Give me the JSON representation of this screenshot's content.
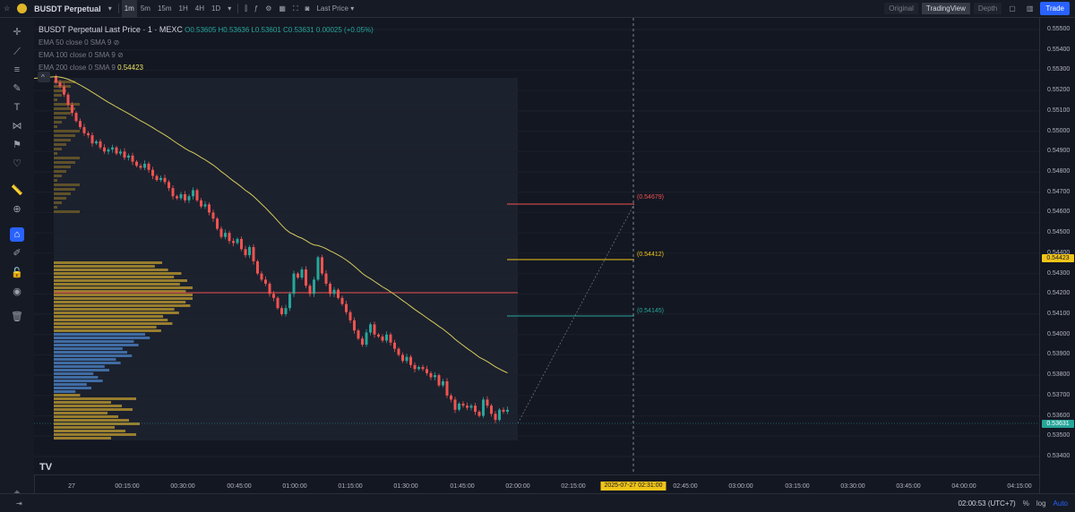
{
  "toolbar": {
    "symbol": "BUSDT Perpetual",
    "intervals": [
      "1m",
      "5m",
      "15m",
      "1H",
      "4H",
      "1D"
    ],
    "active_interval": "1m",
    "price_type": "Last Price ▾",
    "views": [
      "Original",
      "TradingView",
      "Depth"
    ],
    "active_view": "TradingView",
    "trade_label": "Trade"
  },
  "legend": {
    "title": "BUSDT Perpetual Last Price · 1 · MEXC",
    "ohlc": "O0.53605 H0.53636 L0.53601 C0.53631 0.00025 (+0.05%)",
    "ema50": "EMA 50 close 0 SMA 9",
    "ema100": "EMA 100 close 0 SMA 9",
    "ema200": "EMA 200 close 0 SMA 9",
    "ema200_value": "0.54423"
  },
  "price_axis": {
    "labels": [
      "0.55500",
      "0.55400",
      "0.55300",
      "0.55200",
      "0.55100",
      "0.55000",
      "0.54900",
      "0.54800",
      "0.54700",
      "0.54600",
      "0.54500",
      "0.54400",
      "0.54300",
      "0.54200",
      "0.54100",
      "0.54000",
      "0.53900",
      "0.53800",
      "0.53700",
      "0.53600",
      "0.53500",
      "0.53400"
    ],
    "ema_tag": "0.54423",
    "last_tag": "0.53631",
    "last_tag_color": "#26a69a",
    "ema_tag_color": "#f0c419"
  },
  "levels": {
    "upper": "(0.54679)",
    "middle": "(0.54412)",
    "lower": "(0.54145)",
    "upper_color": "#ef5350",
    "middle_color": "#f0c419",
    "lower_color": "#26a69a"
  },
  "time_axis": {
    "labels": [
      "27",
      "00:15:00",
      "00:30:00",
      "00:45:00",
      "01:00:00",
      "01:15:00",
      "01:30:00",
      "01:45:00",
      "02:00:00",
      "02:15:00",
      "02:45:00",
      "03:00:00",
      "03:15:00",
      "03:30:00",
      "03:45:00",
      "04:00:00",
      "04:15:00"
    ],
    "cursor_tag": "2025-07-27   02:31:00"
  },
  "status": {
    "clock": "02:00:53 (UTC+7)",
    "percent": "%",
    "log": "log",
    "auto": "Auto"
  },
  "chart_data": {
    "type": "candlestick",
    "interval": "1m",
    "ylim": [
      0.5533,
      0.5557
    ],
    "closes": [
      0.5524,
      0.5522,
      0.5518,
      0.5513,
      0.5509,
      0.5505,
      0.5502,
      0.5499,
      0.5498,
      0.5494,
      0.5495,
      0.5492,
      0.549,
      0.5491,
      0.5492,
      0.5489,
      0.549,
      0.5487,
      0.5488,
      0.5485,
      0.5483,
      0.5482,
      0.5484,
      0.5481,
      0.5478,
      0.5476,
      0.5477,
      0.5475,
      0.5472,
      0.5468,
      0.5467,
      0.5469,
      0.5466,
      0.5468,
      0.5471,
      0.5466,
      0.5463,
      0.5464,
      0.546,
      0.5457,
      0.5452,
      0.5448,
      0.545,
      0.5446,
      0.5445,
      0.5447,
      0.5442,
      0.5439,
      0.5443,
      0.5436,
      0.543,
      0.5427,
      0.5425,
      0.542,
      0.5418,
      0.5413,
      0.541,
      0.5413,
      0.542,
      0.543,
      0.5428,
      0.5432,
      0.5424,
      0.542,
      0.5427,
      0.5438,
      0.543,
      0.5425,
      0.542,
      0.5422,
      0.5418,
      0.5415,
      0.5411,
      0.5407,
      0.5402,
      0.5398,
      0.5395,
      0.5401,
      0.5405,
      0.54,
      0.5399,
      0.5397,
      0.54,
      0.5396,
      0.5393,
      0.539,
      0.5387,
      0.5389,
      0.5385,
      0.5383,
      0.5384,
      0.5383,
      0.5381,
      0.5379,
      0.538,
      0.5375,
      0.5377,
      0.537,
      0.5368,
      0.5363,
      0.5366,
      0.5365,
      0.5364,
      0.5365,
      0.5362,
      0.536,
      0.5368,
      0.5365,
      0.5361,
      0.5358,
      0.5363,
      0.5362,
      0.5363
    ]
  }
}
